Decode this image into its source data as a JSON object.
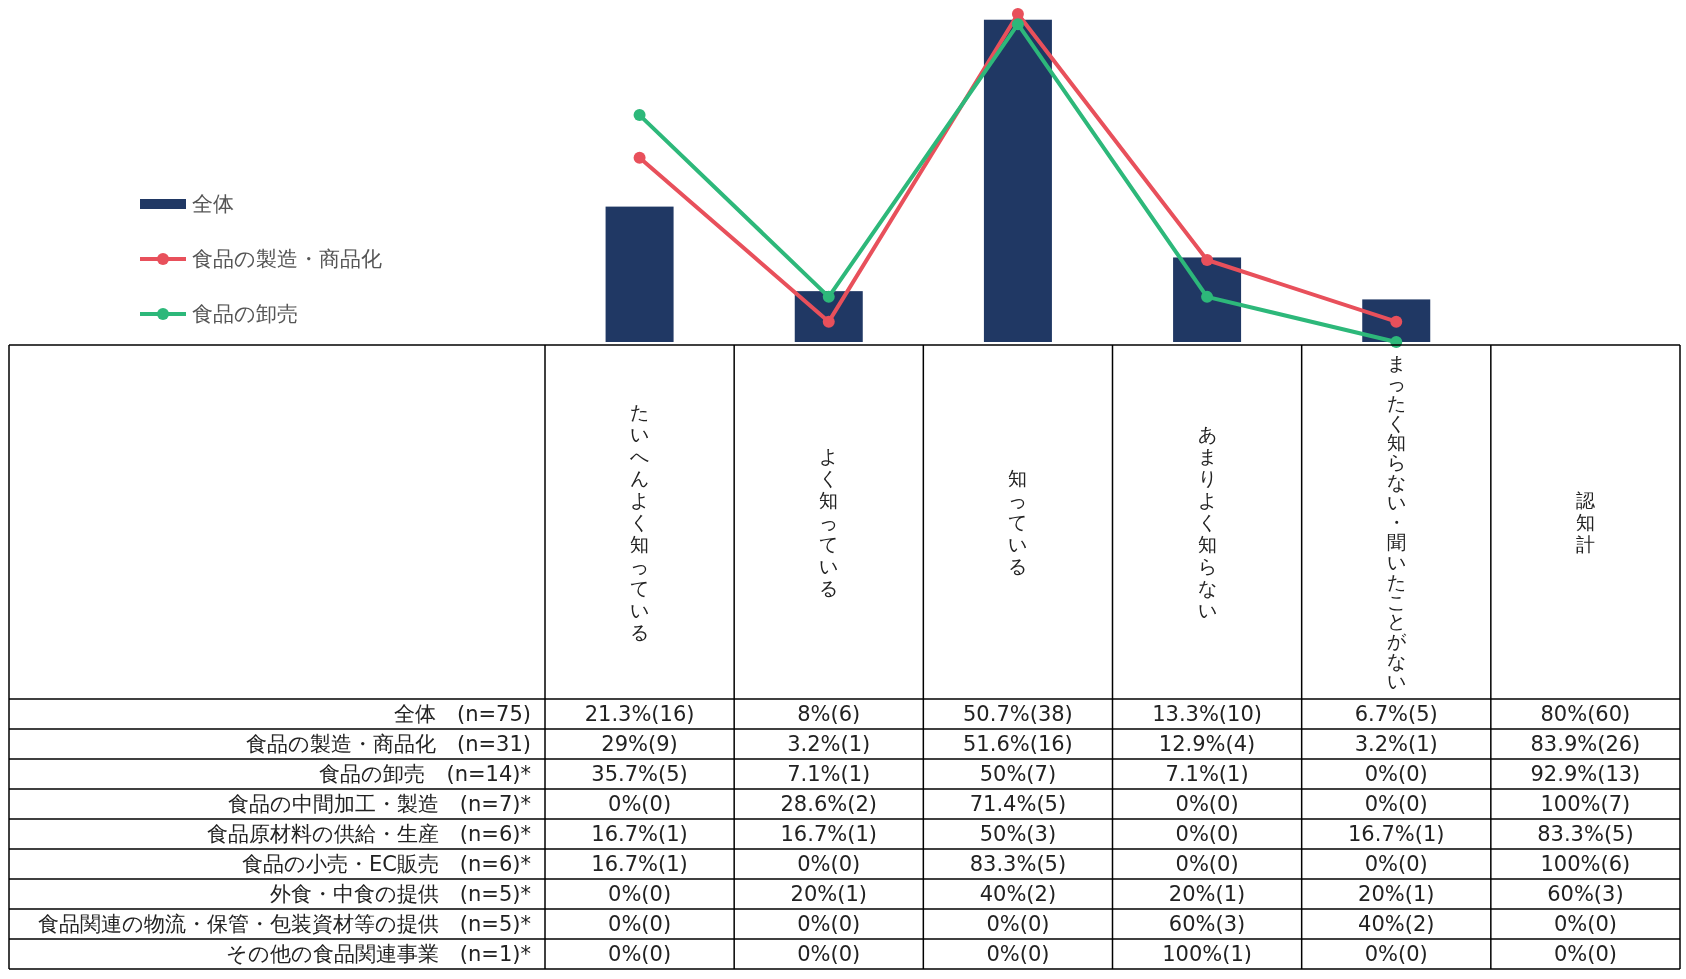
{
  "chart_data": {
    "type": "bar",
    "categories": [
      "たいへんよく知っている",
      "よく知っている",
      "知っている",
      "あまりよく知らない",
      "まったく知らない・聞いたことがない",
      "認知計"
    ],
    "legend": "left",
    "marker": "circle",
    "series": [
      {
        "name": "全体",
        "color": "#203864",
        "values": [
          21.3,
          8,
          50.7,
          13.3,
          6.7,
          null
        ],
        "value_labels": [
          "21.3%(16)",
          "8%(6)",
          "50.7%(38)",
          "13.3%(10)",
          "6.7%(5)",
          "80%(60)"
        ]
      },
      {
        "name": "食品の製造・商品化",
        "type": "line",
        "color": "#e8505b",
        "values": [
          29,
          3.2,
          51.6,
          12.9,
          3.2,
          null
        ],
        "value_labels": [
          "29%(9)",
          "3.2%(1)",
          "51.6%(16)",
          "12.9%(4)",
          "3.2%(1)",
          "83.9%(26)"
        ]
      },
      {
        "name": "食品の卸売",
        "type": "line",
        "color": "#2db87a",
        "values": [
          35.7,
          7.1,
          50,
          7.1,
          0,
          null
        ],
        "value_labels": [
          "35.7%(5)",
          "7.1%(1)",
          "50%(7)",
          "7.1%(1)",
          "0%(0)",
          "92.9%(13)"
        ]
      }
    ],
    "annotations": [
      "全体　(n=75)",
      "食品の製造・商品化　(n=31)",
      "食品の卸売　(n=14)*",
      "食品の中間加工・製造　(n=7)*",
      "食品原材料の供給・生産　(n=6)*",
      "食品の小売・EC販売　(n=6)*",
      "外食・中食の提供　(n=5)*",
      "食品関連の物流・保管・包装資材等の提供　(n=5)*",
      "その他の食品関連事業　(n=1)*",
      "0%(0)",
      "28.6%(2)",
      "71.4%(5)",
      "0%(0)",
      "0%(0)",
      "100%(7)",
      "16.7%(1)",
      "16.7%(1)",
      "50%(3)",
      "0%(0)",
      "16.7%(1)",
      "83.3%(5)",
      "16.7%(1)",
      "0%(0)",
      "83.3%(5)",
      "0%(0)",
      "0%(0)",
      "100%(6)",
      "0%(0)",
      "20%(1)",
      "40%(2)",
      "20%(1)",
      "20%(1)",
      "60%(3)",
      "0%(0)",
      "0%(0)",
      "0%(0)",
      "60%(3)",
      "40%(2)",
      "0%(0)",
      "0%(0)",
      "0%(0)",
      "0%(0)",
      "100%(1)",
      "0%(0)",
      "0%(0)"
    ]
  }
}
